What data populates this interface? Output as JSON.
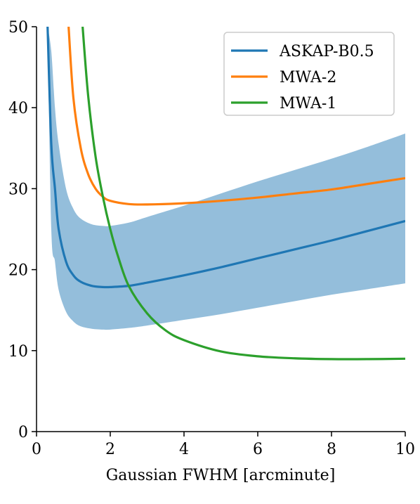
{
  "chart_data": {
    "type": "line",
    "xlabel": "Gaussian FWHM [arcminute]",
    "ylabel": "",
    "xlim": [
      0,
      10
    ],
    "ylim": [
      0,
      50
    ],
    "xticks": [
      0,
      2,
      4,
      6,
      8,
      10
    ],
    "yticks": [
      0,
      10,
      20,
      30,
      40,
      50
    ],
    "grid": false,
    "legend_position": "top-right",
    "series": [
      {
        "name": "ASKAP-B0.5",
        "color": "#1f77b4",
        "x": [
          0.3,
          0.4,
          0.5,
          0.6,
          0.8,
          1.0,
          1.2,
          1.5,
          1.8,
          2.0,
          2.5,
          3.0,
          4.0,
          5.0,
          6.0,
          7.0,
          8.0,
          9.0,
          10.0
        ],
        "y": [
          50,
          35.5,
          30,
          25,
          21,
          19.3,
          18.5,
          18.0,
          17.85,
          17.85,
          18.0,
          18.4,
          19.3,
          20.3,
          21.4,
          22.5,
          23.6,
          24.8,
          26.0
        ],
        "band_lower": [
          50,
          25,
          21,
          17.5,
          14.8,
          13.6,
          13.0,
          12.7,
          12.6,
          12.6,
          12.8,
          13.1,
          13.8,
          14.5,
          15.3,
          16.1,
          16.9,
          17.6,
          18.3
        ],
        "band_upper": [
          50,
          47,
          40,
          35.5,
          30,
          27.5,
          26.3,
          25.6,
          25.4,
          25.4,
          25.8,
          26.5,
          27.9,
          29.4,
          30.9,
          32.3,
          33.7,
          35.2,
          36.8
        ]
      },
      {
        "name": "MWA-2",
        "color": "#ff7f0e",
        "x": [
          0.87,
          1.0,
          1.2,
          1.4,
          1.6,
          1.8,
          2.0,
          2.5,
          3.0,
          4.0,
          5.0,
          6.0,
          7.0,
          8.0,
          9.0,
          10.0
        ],
        "y": [
          50,
          41.2,
          35.0,
          31.8,
          30.0,
          29.0,
          28.5,
          28.1,
          28.05,
          28.2,
          28.5,
          28.9,
          29.4,
          29.9,
          30.6,
          31.3
        ]
      },
      {
        "name": "MWA-1",
        "color": "#2ca02c",
        "x": [
          1.25,
          1.4,
          1.6,
          1.8,
          2.0,
          2.2,
          2.5,
          3.0,
          3.5,
          4.0,
          5.0,
          6.0,
          7.0,
          8.0,
          9.0,
          10.0
        ],
        "y": [
          50,
          41.5,
          34.0,
          29.0,
          25.0,
          21.8,
          18.0,
          14.6,
          12.5,
          11.3,
          9.9,
          9.3,
          9.05,
          8.95,
          8.95,
          9.0
        ]
      }
    ]
  }
}
